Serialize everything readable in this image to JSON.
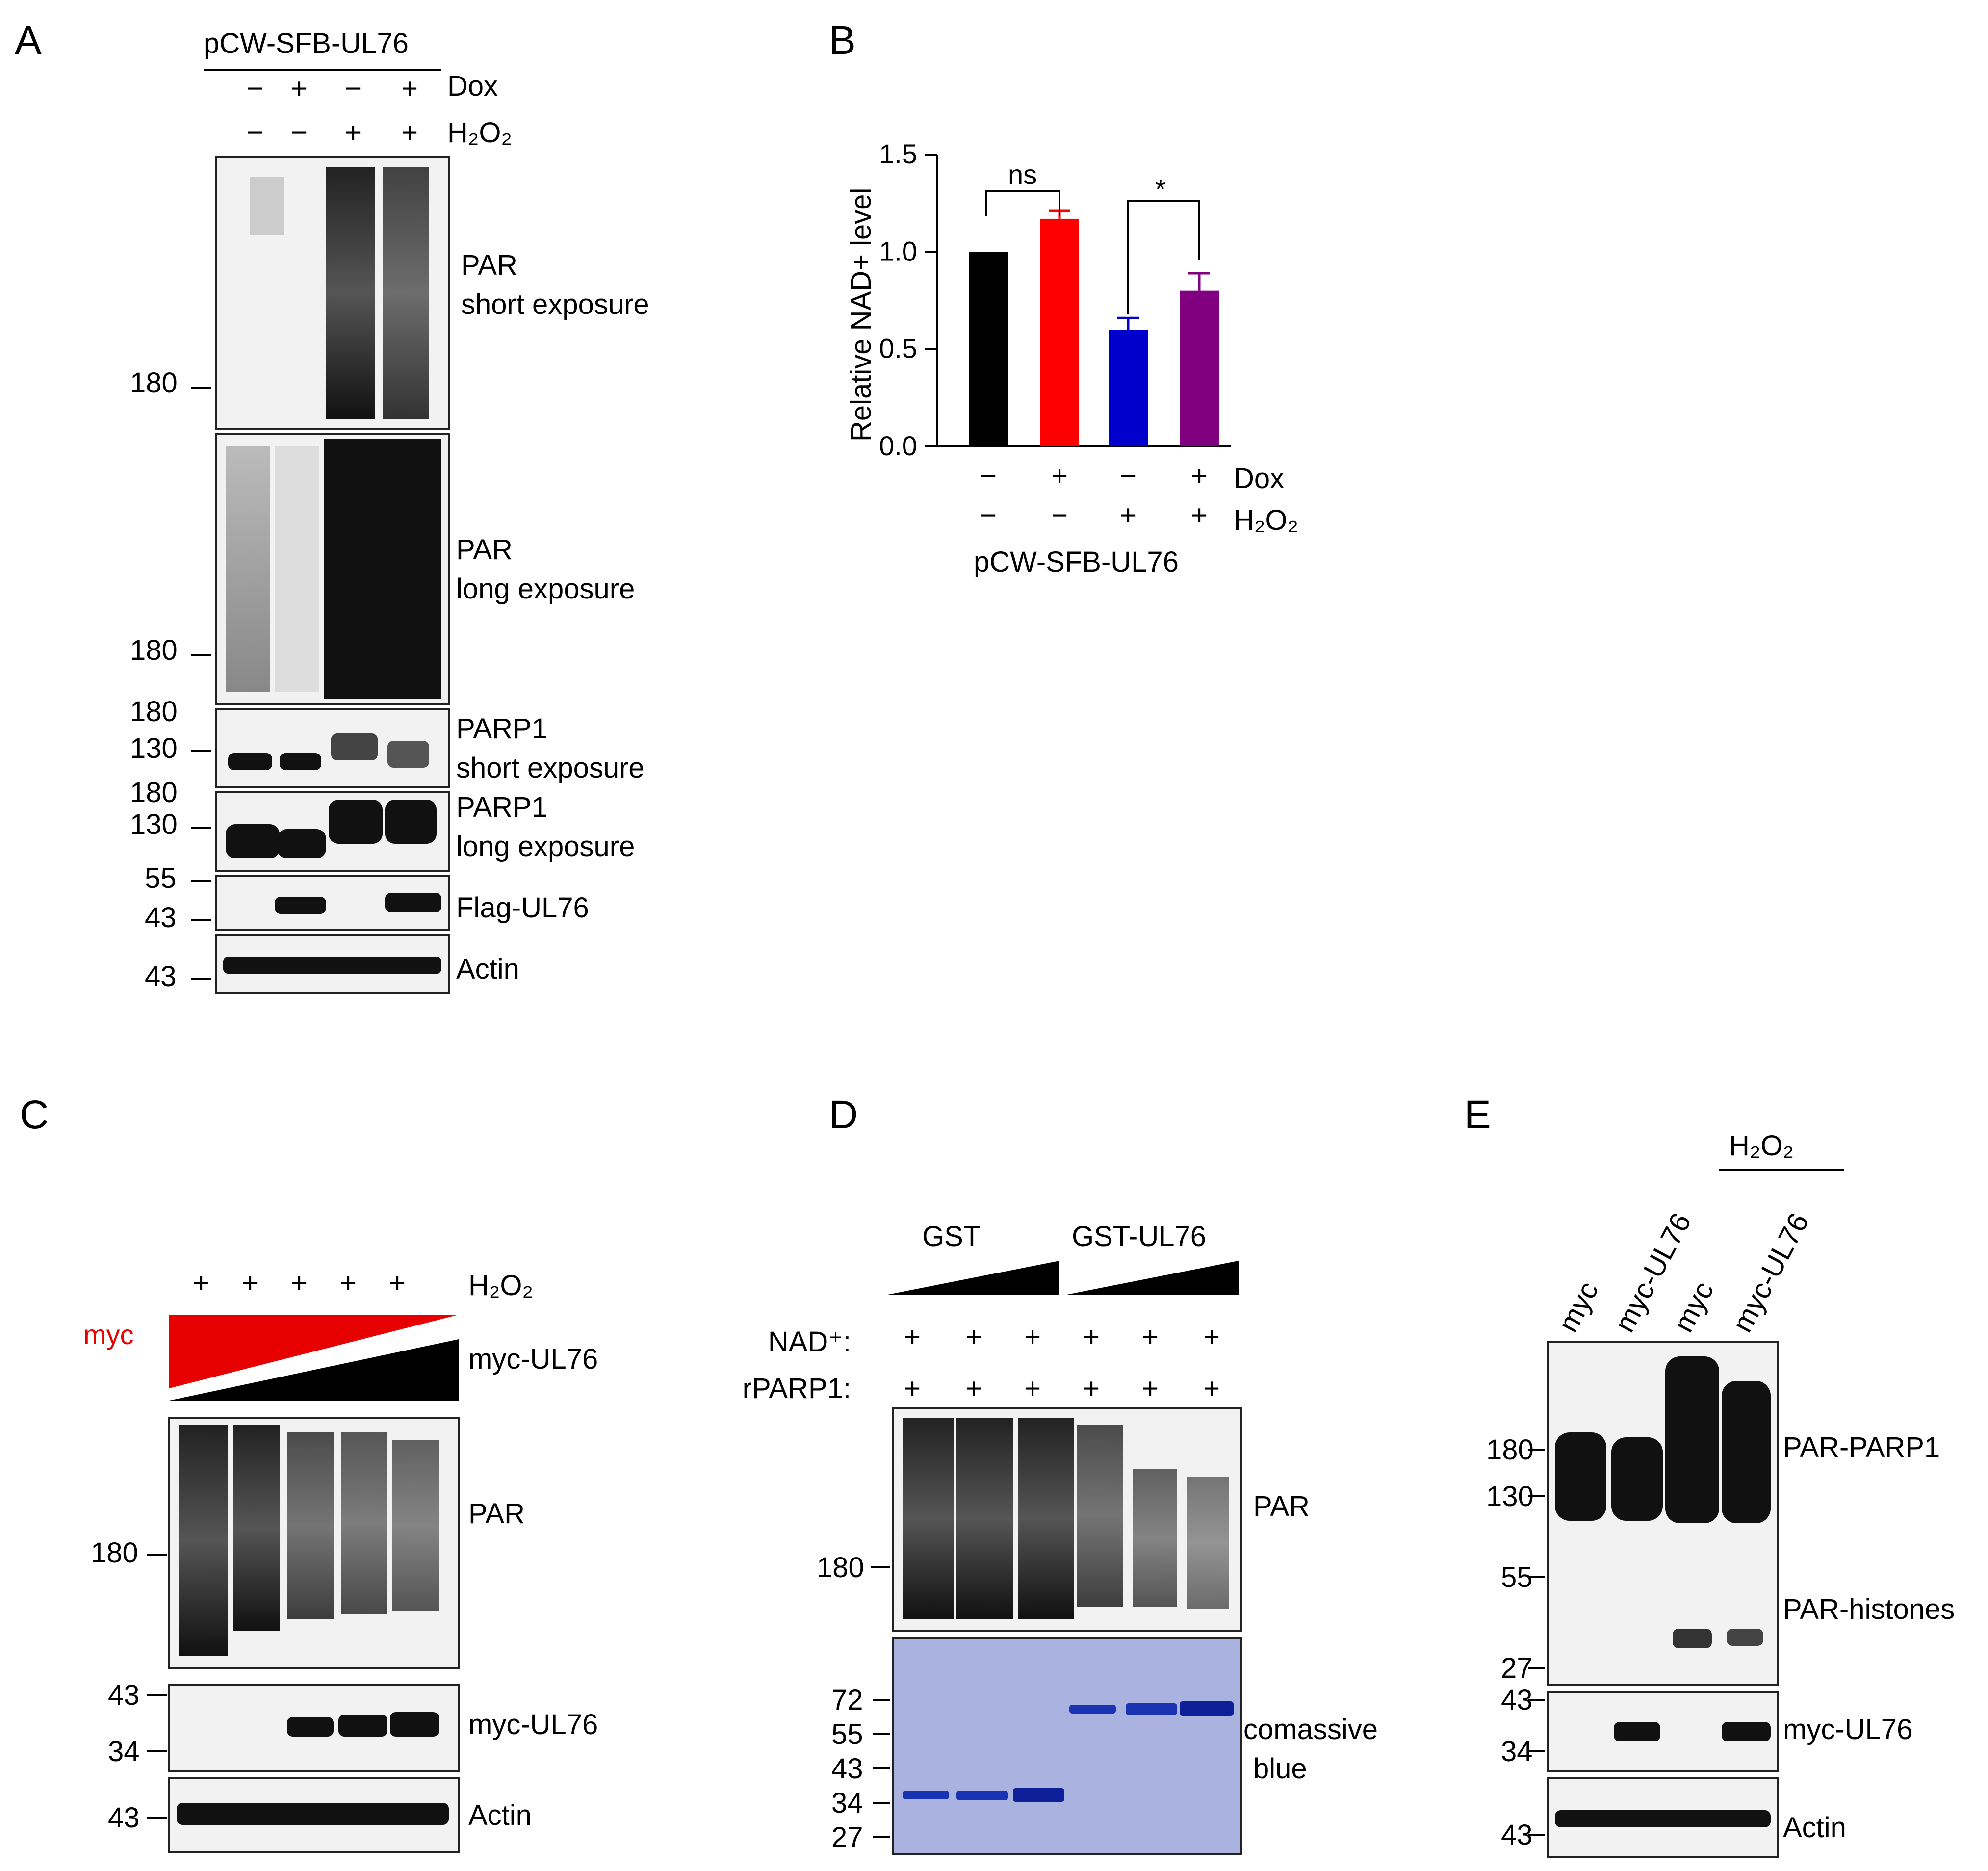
{
  "panels": {
    "A": {
      "label": "A",
      "construct": "pCW-SFB-UL76",
      "dox_label": "Dox",
      "dox_row": [
        "−",
        "+",
        "−",
        "+"
      ],
      "h2o2_label": "H₂O₂",
      "h2o2_row": [
        "−",
        "−",
        "+",
        "+"
      ],
      "blots": [
        {
          "name": "PAR",
          "sub": "short exposure",
          "markers": [
            "180"
          ]
        },
        {
          "name": "PAR",
          "sub": "long exposure",
          "markers": [
            "180"
          ]
        },
        {
          "name": "PARP1",
          "sub": "short exposure",
          "markers": [
            "180",
            "130"
          ]
        },
        {
          "name": "PARP1",
          "sub": "long exposure",
          "markers": [
            "180",
            "130"
          ]
        },
        {
          "name": "Flag-UL76",
          "sub": "",
          "markers": [
            "55",
            "43"
          ]
        },
        {
          "name": "Actin",
          "sub": "",
          "markers": [
            "43"
          ]
        }
      ]
    },
    "B": {
      "label": "B",
      "dox_label": "Dox",
      "dox_row": [
        "−",
        "+",
        "−",
        "+"
      ],
      "h2o2_label": "H₂O₂",
      "h2o2_row": [
        "−",
        "−",
        "+",
        "+"
      ],
      "construct": "pCW-SFB-UL76",
      "sig_ns": "ns",
      "sig_star": "*"
    },
    "C": {
      "label": "C",
      "h2o2_label": "H₂O₂",
      "h2o2_row": [
        "+",
        "+",
        "+",
        "+",
        "+"
      ],
      "myc_label": "myc",
      "myc_ul76_label": "myc-UL76",
      "blots": [
        {
          "name": "PAR",
          "markers": [
            "180"
          ]
        },
        {
          "name": "myc-UL76",
          "markers": [
            "43",
            "34"
          ]
        },
        {
          "name": "Actin",
          "markers": [
            "43"
          ]
        }
      ]
    },
    "D": {
      "label": "D",
      "gst_label": "GST",
      "gst_ul76_label": "GST-UL76",
      "nad_label": "NAD⁺:",
      "rparp1_label": "rPARP1:",
      "nad_row": [
        "+",
        "+",
        "+",
        "+",
        "+",
        "+"
      ],
      "rparp1_row": [
        "+",
        "+",
        "+",
        "+",
        "+",
        "+"
      ],
      "blots": [
        {
          "name": "PAR",
          "markers": [
            "180"
          ]
        },
        {
          "name": "comassive",
          "name2": "blue",
          "markers": [
            "72",
            "55",
            "43",
            "34",
            "27"
          ]
        }
      ]
    },
    "E": {
      "label": "E",
      "h2o2_label": "H₂O₂",
      "lanes": [
        "myc",
        "myc-UL76",
        "myc",
        "myc-UL76"
      ],
      "blots": [
        {
          "name": "PAR-PARP1",
          "name2": "PAR-histones",
          "markers": [
            "180",
            "130",
            "55",
            "27"
          ]
        },
        {
          "name": "myc-UL76",
          "markers": [
            "43",
            "34"
          ]
        },
        {
          "name": "Actin",
          "markers": [
            "43"
          ]
        }
      ]
    }
  },
  "chart_data": {
    "type": "bar",
    "categories": [
      "− / −",
      "+ / −",
      "− / +",
      "+ / +"
    ],
    "values": [
      1.0,
      1.17,
      0.6,
      0.8
    ],
    "errors": [
      0.0,
      0.04,
      0.06,
      0.09
    ],
    "bar_colors": [
      "#000000",
      "#ff0000",
      "#0000cc",
      "#800080"
    ],
    "ylabel": "Relative NAD+ level",
    "ylim": [
      0,
      1.5
    ],
    "yticks": [
      "0.0",
      "0.5",
      "1.0",
      "1.5"
    ],
    "annotations": [
      "ns",
      "*"
    ]
  }
}
